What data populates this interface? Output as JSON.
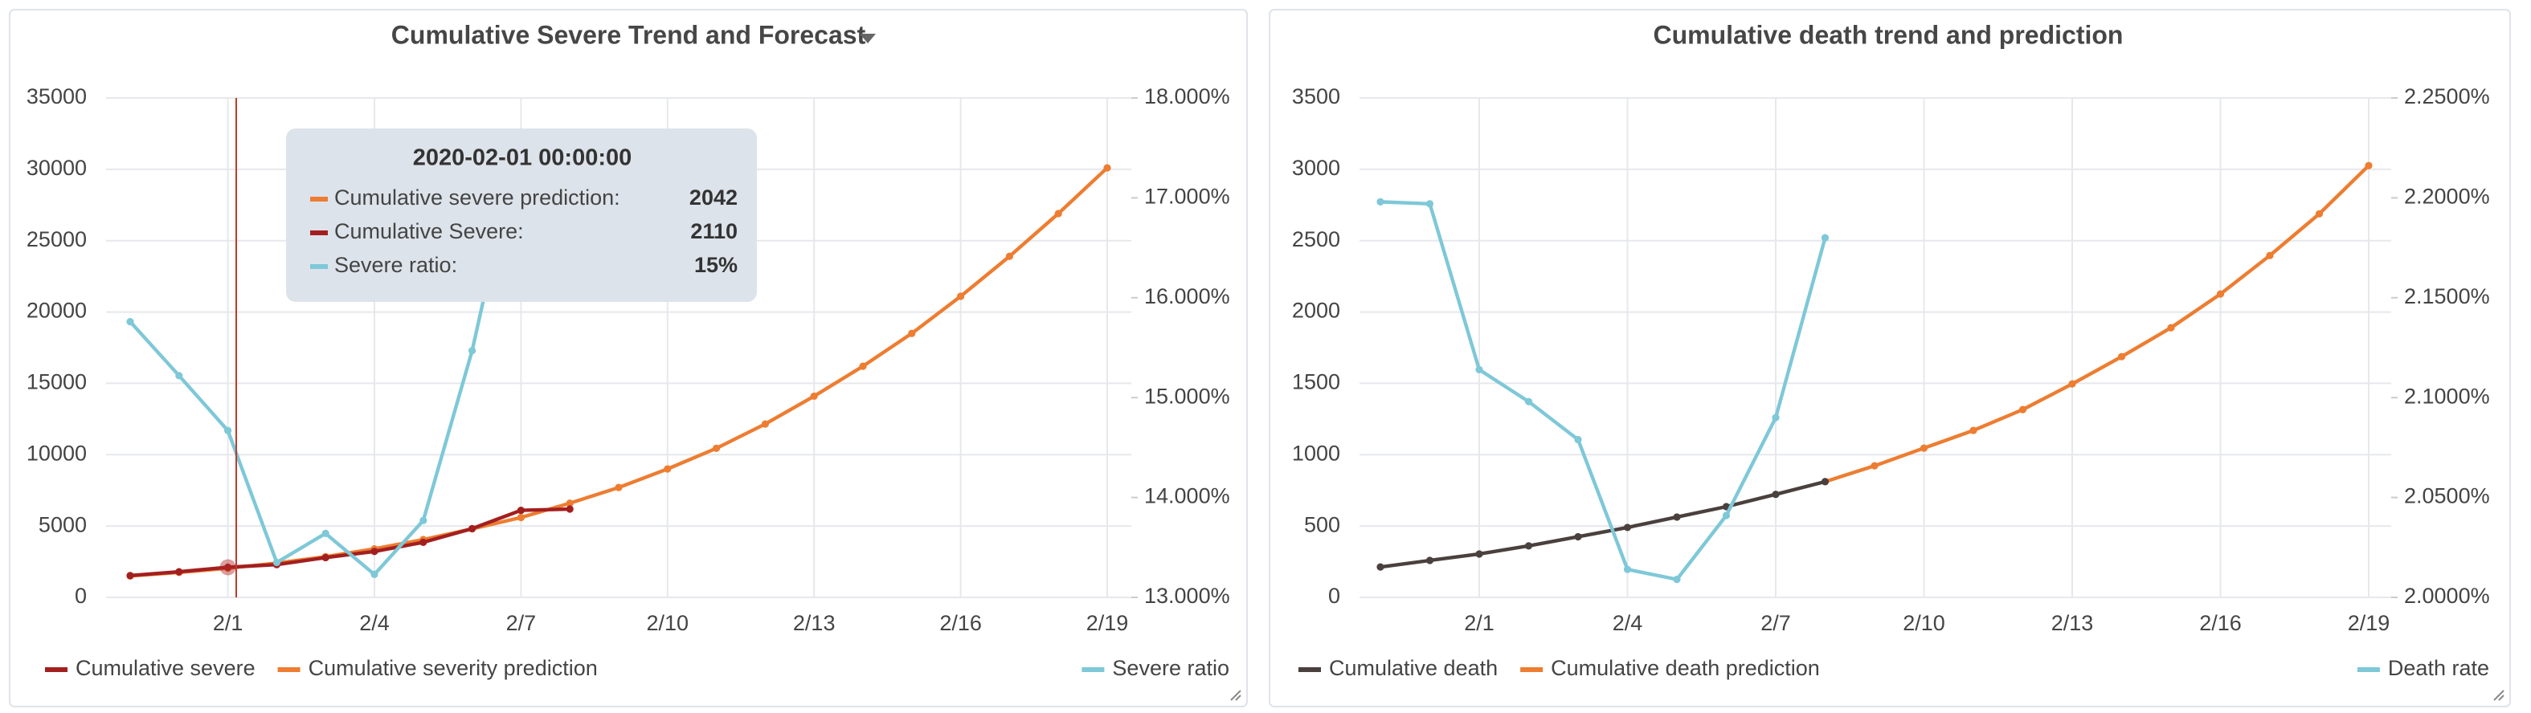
{
  "chart_data": [
    {
      "type": "line",
      "title": "Cumulative Severe Trend and Forecast",
      "categories": [
        null,
        null,
        "2/1",
        null,
        null,
        "2/4",
        null,
        null,
        "2/7",
        null,
        null,
        "2/10",
        null,
        null,
        "2/13",
        null,
        null,
        "2/16",
        null,
        null,
        "2/19"
      ],
      "series": [
        {
          "name": "Cumulative severe",
          "color": "#a31f1f",
          "values": [
            1527,
            1795,
            2110,
            2296,
            2788,
            3219,
            3859,
            4821,
            6101,
            6188,
            null,
            null,
            null,
            null,
            null,
            null,
            null,
            null,
            null,
            null,
            null
          ]
        },
        {
          "name": "Cumulative severity prediction",
          "color": "#ed7d31",
          "values": [
            1500,
            1750,
            2042,
            2400,
            2850,
            3400,
            4050,
            4800,
            5600,
            6600,
            7700,
            9000,
            10450,
            12150,
            14100,
            16200,
            18500,
            21100,
            23900,
            26900,
            30100
          ]
        },
        {
          "name": "Severe ratio",
          "color": "#7ec8d8",
          "axis": "y2",
          "values": [
            15.76,
            15.22,
            14.67,
            13.35,
            13.64,
            13.23,
            13.77,
            15.47,
            17.66,
            16.64,
            null,
            null,
            null,
            null,
            null,
            null,
            null,
            null,
            null,
            null,
            null
          ]
        }
      ],
      "ylim": [
        0,
        35000
      ],
      "yticks": [
        0,
        5000,
        10000,
        15000,
        20000,
        25000,
        30000,
        35000
      ],
      "y2lim": [
        13,
        18
      ],
      "y2ticks": [
        {
          "value": 13,
          "label": "13.000%"
        },
        {
          "value": 14,
          "label": "14.000%"
        },
        {
          "value": 15,
          "label": "15.000%"
        },
        {
          "value": 16,
          "label": "16.000%"
        },
        {
          "value": 17,
          "label": "17.000%"
        },
        {
          "value": 18,
          "label": "18.000%"
        }
      ],
      "grid": true,
      "tooltip": {
        "title": "2020-02-01 00:00:00",
        "rows": [
          {
            "name": "Cumulative severe prediction:",
            "color": "#ed7d31",
            "value": 2042
          },
          {
            "name": "Cumulative Severe:",
            "color": "#a31f1f",
            "value": 2110
          },
          {
            "name": "Severe ratio:",
            "color": "#7ec8d8",
            "value": "15%"
          }
        ]
      }
    },
    {
      "type": "line",
      "title": "Cumulative death trend and prediction",
      "categories": [
        null,
        null,
        "2/1",
        null,
        null,
        "2/4",
        null,
        null,
        "2/7",
        null,
        null,
        "2/10",
        null,
        null,
        "2/13",
        null,
        null,
        "2/16",
        null,
        null,
        "2/19"
      ],
      "series": [
        {
          "name": "Cumulative death",
          "color": "#4a403d",
          "values": [
            213,
            259,
            304,
            361,
            425,
            490,
            563,
            636,
            722,
            811,
            null,
            null,
            null,
            null,
            null,
            null,
            null,
            null,
            null,
            null,
            null
          ]
        },
        {
          "name": "Cumulative death prediction",
          "color": "#ed7d31",
          "values": [
            null,
            null,
            null,
            null,
            null,
            null,
            null,
            null,
            null,
            811,
            922,
            1046,
            1170,
            1316,
            1496,
            1687,
            1890,
            2126,
            2396,
            2688,
            3026
          ]
        },
        {
          "name": "Death rate",
          "color": "#7ec8d8",
          "axis": "y2",
          "values": [
            2.198,
            2.197,
            2.114,
            2.098,
            2.079,
            2.014,
            2.009,
            2.041,
            2.09,
            2.18,
            null,
            null,
            null,
            null,
            null,
            null,
            null,
            null,
            null,
            null,
            null
          ]
        }
      ],
      "ylim": [
        0,
        3500
      ],
      "yticks": [
        0,
        500,
        1000,
        1500,
        2000,
        2500,
        3000,
        3500
      ],
      "y2lim": [
        2,
        2.25
      ],
      "y2ticks": [
        {
          "value": 2,
          "label": "2.0000%"
        },
        {
          "value": 2.05,
          "label": "2.0500%"
        },
        {
          "value": 2.1,
          "label": "2.1000%"
        },
        {
          "value": 2.15,
          "label": "2.1500%"
        },
        {
          "value": 2.2,
          "label": "2.2000%"
        },
        {
          "value": 2.25,
          "label": "2.2500%"
        }
      ],
      "grid": true
    }
  ]
}
